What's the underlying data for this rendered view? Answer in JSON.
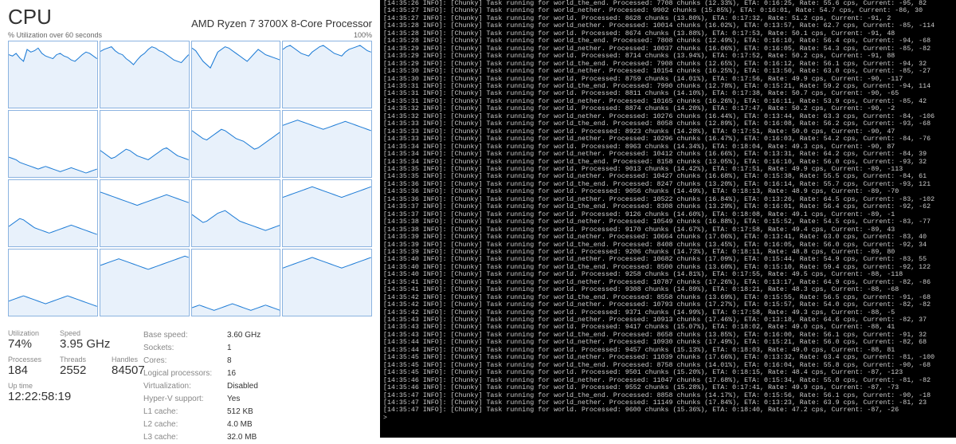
{
  "cpu": {
    "title": "CPU",
    "model": "AMD Ryzen 7 3700X 8-Core Processor",
    "axis_left": "% Utilization over 60 seconds",
    "axis_right": "100%",
    "core_colors": {
      "stroke": "#1e7cd6",
      "fill": "#e8f1fb",
      "border": "#8bb3e0"
    },
    "cores": [
      [
        80,
        78,
        82,
        75,
        70,
        88,
        84,
        86,
        90,
        82,
        78,
        76,
        74,
        80,
        82,
        78,
        76,
        72,
        70,
        75,
        80,
        84,
        82,
        78,
        74
      ],
      [
        85,
        88,
        90,
        92,
        86,
        82,
        80,
        74,
        70,
        65,
        72,
        78,
        82,
        88,
        92,
        90,
        86,
        84,
        80,
        76,
        72,
        70,
        68,
        74,
        80
      ],
      [
        90,
        86,
        78,
        70,
        65,
        60,
        72,
        84,
        88,
        92,
        90,
        86,
        82,
        78,
        74,
        70,
        76,
        82,
        88,
        84,
        80,
        78,
        76,
        74,
        72
      ],
      [
        88,
        92,
        94,
        90,
        86,
        82,
        80,
        78,
        84,
        88,
        92,
        94,
        90,
        86,
        82,
        80,
        78,
        84,
        88,
        90,
        92,
        94,
        90,
        86,
        84
      ],
      [
        30,
        28,
        26,
        22,
        20,
        18,
        16,
        14,
        12,
        14,
        16,
        14,
        12,
        10,
        8,
        10,
        12,
        14,
        12,
        10,
        8,
        6,
        8,
        10,
        12
      ],
      [
        40,
        36,
        32,
        28,
        30,
        34,
        38,
        42,
        40,
        36,
        32,
        30,
        28,
        26,
        30,
        34,
        38,
        42,
        44,
        40,
        36,
        32,
        30,
        28,
        26
      ],
      [
        70,
        66,
        62,
        58,
        56,
        60,
        64,
        68,
        72,
        70,
        66,
        62,
        58,
        56,
        54,
        50,
        46,
        42,
        44,
        48,
        52,
        56,
        60,
        64,
        68
      ],
      [
        78,
        80,
        82,
        84,
        86,
        84,
        82,
        80,
        78,
        76,
        74,
        72,
        74,
        76,
        78,
        80,
        82,
        84,
        82,
        80,
        78,
        76,
        74,
        72,
        70
      ],
      [
        30,
        34,
        38,
        42,
        40,
        36,
        32,
        28,
        26,
        24,
        22,
        20,
        22,
        24,
        26,
        28,
        30,
        32,
        30,
        28,
        26,
        24,
        22,
        20,
        18
      ],
      [
        82,
        80,
        78,
        76,
        74,
        72,
        70,
        68,
        66,
        64,
        62,
        64,
        66,
        68,
        70,
        72,
        74,
        76,
        78,
        76,
        74,
        72,
        70,
        68,
        66
      ],
      [
        48,
        44,
        40,
        36,
        38,
        42,
        46,
        50,
        52,
        54,
        50,
        46,
        42,
        38,
        36,
        34,
        32,
        30,
        28,
        26,
        24,
        26,
        28,
        30,
        32
      ],
      [
        74,
        76,
        78,
        80,
        82,
        84,
        86,
        88,
        90,
        88,
        86,
        84,
        82,
        80,
        78,
        76,
        74,
        76,
        78,
        80,
        82,
        84,
        86,
        88,
        90
      ],
      [
        22,
        24,
        26,
        28,
        30,
        28,
        26,
        24,
        22,
        20,
        18,
        20,
        22,
        24,
        26,
        28,
        30,
        28,
        26,
        24,
        22,
        20,
        18,
        16,
        14
      ],
      [
        76,
        78,
        80,
        82,
        84,
        86,
        84,
        82,
        80,
        78,
        76,
        74,
        72,
        70,
        72,
        74,
        76,
        78,
        80,
        82,
        84,
        86,
        88,
        90,
        88
      ],
      [
        12,
        14,
        16,
        14,
        12,
        10,
        8,
        10,
        12,
        14,
        16,
        18,
        16,
        14,
        12,
        10,
        8,
        10,
        12,
        14,
        16,
        14,
        12,
        10,
        8
      ],
      [
        72,
        74,
        76,
        78,
        80,
        82,
        84,
        86,
        88,
        86,
        84,
        82,
        80,
        78,
        76,
        74,
        72,
        74,
        76,
        78,
        80,
        82,
        84,
        86,
        88
      ]
    ],
    "stats": {
      "utilization_label": "Utilization",
      "utilization": "74%",
      "speed_label": "Speed",
      "speed": "3.95 GHz",
      "processes_label": "Processes",
      "processes": "184",
      "threads_label": "Threads",
      "threads": "2552",
      "handles_label": "Handles",
      "handles": "84507",
      "uptime_label": "Up time",
      "uptime": "12:22:58:19"
    },
    "kv": [
      {
        "k": "Base speed:",
        "v": "3.60 GHz"
      },
      {
        "k": "Sockets:",
        "v": "1"
      },
      {
        "k": "Cores:",
        "v": "8"
      },
      {
        "k": "Logical processors:",
        "v": "16"
      },
      {
        "k": "Virtualization:",
        "v": "Disabled"
      },
      {
        "k": "Hyper-V support:",
        "v": "Yes"
      },
      {
        "k": "L1 cache:",
        "v": "512 KB"
      },
      {
        "k": "L2 cache:",
        "v": "4.0 MB"
      },
      {
        "k": "L3 cache:",
        "v": "32.0 MB"
      }
    ]
  },
  "terminal": {
    "color": "#cccccc",
    "background": "#000000",
    "lines": [
      "[14:35:26 INFO]: [Chunky] Task running for world_the_end. Processed: 7708 chunks (12.33%), ETA: 0:16:25, Rate: 55.6 cps, Current: -95, 82",
      "[14:35:27 INFO]: [Chunky] Task running for world_nether. Processed: 9902 chunks (15.85%), ETA: 0:16:01, Rate: 54.7 cps, Current: -86, 30",
      "[14:35:27 INFO]: [Chunky] Task running for world. Processed: 8628 chunks (13.80%), ETA: 0:17:32, Rate: 51.2 cps, Current: -91, 2",
      "[14:35:28 INFO]: [Chunky] Task running for world_nether. Processed: 10014 chunks (16.02%), ETA: 0:13:57, Rate: 62.7 cps, Current: -85, -114",
      "[14:35:28 INFO]: [Chunky] Task running for world. Processed: 8674 chunks (13.88%), ETA: 0:17:53, Rate: 50.1 cps, Current: -91, 48",
      "[14:35:28 INFO]: [Chunky] Task running for world_the_end. Processed: 7808 chunks (12.49%), ETA: 0:16:10, Rate: 56.4 cps, Current: -94, -68",
      "[14:35:29 INFO]: [Chunky] Task running for world_nether. Processed: 10037 chunks (16.06%), ETA: 0:16:05, Rate: 54.3 cps, Current: -85, -82",
      "[14:35:29 INFO]: [Chunky] Task running for world. Processed: 8714 chunks (13.94%), ETA: 0:17:52, Rate: 50.2 cps, Current: -91, 88",
      "[14:35:29 INFO]: [Chunky] Task running for world_the_end. Processed: 7908 chunks (12.65%), ETA: 0:16:12, Rate: 56.1 cps, Current: -94, 32",
      "[14:35:30 INFO]: [Chunky] Task running for world_nether. Processed: 10154 chunks (16.25%), ETA: 0:13:50, Rate: 63.0 cps, Current: -85, -27",
      "[14:35:30 INFO]: [Chunky] Task running for world. Processed: 8759 chunks (14.01%), ETA: 0:17:56, Rate: 49.9 cps, Current: -90, -117",
      "[14:35:31 INFO]: [Chunky] Task running for world_the_end. Processed: 7990 chunks (12.78%), ETA: 0:15:21, Rate: 59.2 cps, Current: -94, 114",
      "[14:35:31 INFO]: [Chunky] Task running for world. Processed: 8811 chunks (14.10%), ETA: 0:17:38, Rate: 50.7 cps, Current: -90, -65",
      "[14:35:31 INFO]: [Chunky] Task running for world_nether. Processed: 10165 chunks (16.26%), ETA: 0:16:11, Rate: 53.9 cps, Current: -85, 42",
      "[14:35:32 INFO]: [Chunky] Task running for world. Processed: 8874 chunks (14.20%), ETA: 0:17:47, Rate: 50.2 cps, Current: -90, -2",
      "[14:35:32 INFO]: [Chunky] Task running for world_nether. Processed: 10276 chunks (16.44%), ETA: 0:13:44, Rate: 63.3 cps, Current: -84, -106",
      "[14:35:33 INFO]: [Chunky] Task running for world_the_end. Processed: 8058 chunks (12.89%), ETA: 0:16:08, Rate: 56.2 cps, Current: -93, -68",
      "[14:35:33 INFO]: [Chunky] Task running for world. Processed: 8923 chunks (14.28%), ETA: 0:17:51, Rate: 50.0 cps, Current: -90, 47",
      "[14:35:33 INFO]: [Chunky] Task running for world_nether. Processed: 10296 chunks (16.47%), ETA: 0:16:03, Rate: 54.2 cps, Current: -84, -76",
      "[14:35:34 INFO]: [Chunky] Task running for world. Processed: 8963 chunks (14.34%), ETA: 0:18:04, Rate: 49.3 cps, Current: -90, 87",
      "[14:35:34 INFO]: [Chunky] Task running for world_nether. Processed: 10412 chunks (16.66%), ETA: 0:13:31, Rate: 64.2 cps, Current: -84, 39",
      "[14:35:34 INFO]: [Chunky] Task running for world_the_end. Processed: 8158 chunks (13.05%), ETA: 0:16:10, Rate: 56.0 cps, Current: -93, 32",
      "[14:35:35 INFO]: [Chunky] Task running for world. Processed: 9013 chunks (14.42%), ETA: 0:17:51, Rate: 49.9 cps, Current: -89, -113",
      "[14:35:35 INFO]: [Chunky] Task running for world_nether. Processed: 10427 chunks (16.68%), ETA: 0:15:38, Rate: 55.5 cps, Current: -84, 61",
      "[14:35:36 INFO]: [Chunky] Task running for world_the_end. Processed: 8247 chunks (13.20%), ETA: 0:16:14, Rate: 55.7 cps, Current: -93, 121",
      "[14:35:36 INFO]: [Chunky] Task running for world. Processed: 9056 chunks (14.49%), ETA: 0:18:13, Rate: 48.9 cps, Current: -89, -70",
      "[14:35:36 INFO]: [Chunky] Task running for world_nether. Processed: 10522 chunks (16.84%), ETA: 0:13:26, Rate: 64.5 cps, Current: -83, -102",
      "[14:35:37 INFO]: [Chunky] Task running for world_the_end. Processed: 8308 chunks (13.29%), ETA: 0:16:01, Rate: 56.4 cps, Current: -92, -62",
      "[14:35:37 INFO]: [Chunky] Task running for world. Processed: 9126 chunks (14.60%), ETA: 0:18:08, Rate: 49.1 cps, Current: -89, -1",
      "[14:35:38 INFO]: [Chunky] Task running for world_nether. Processed: 10549 chunks (16.88%), ETA: 0:15:52, Rate: 54.5 cps, Current: -83, -77",
      "[14:35:38 INFO]: [Chunky] Task running for world. Processed: 9170 chunks (14.67%), ETA: 0:17:58, Rate: 49.4 cps, Current: -89, 43",
      "[14:35:39 INFO]: [Chunky] Task running for world_nether. Processed: 10664 chunks (17.06%), ETA: 0:13:41, Rate: 63.0 cps, Current: -83, 40",
      "[14:35:39 INFO]: [Chunky] Task running for world_the_end. Processed: 8408 chunks (13.45%), ETA: 0:16:05, Rate: 56.0 cps, Current: -92, 34",
      "[14:35:39 INFO]: [Chunky] Task running for world. Processed: 9206 chunks (14.73%), ETA: 0:18:11, Rate: 48.8 cps, Current: -89, 80",
      "[14:35:40 INFO]: [Chunky] Task running for world_nether. Processed: 10682 chunks (17.09%), ETA: 0:15:44, Rate: 54.9 cps, Current: -83, 55",
      "[14:35:40 INFO]: [Chunky] Task running for world_the_end. Processed: 8500 chunks (13.60%), ETA: 0:15:10, Rate: 59.4 cps, Current: -92, 122",
      "[14:35:40 INFO]: [Chunky] Task running for world. Processed: 9258 chunks (14.81%), ETA: 0:17:55, Rate: 49.5 cps, Current: -88, -118",
      "[14:35:41 INFO]: [Chunky] Task running for world_nether. Processed: 10787 chunks (17.26%), ETA: 0:13:17, Rate: 64.9 cps, Current: -82, -86",
      "[14:35:41 INFO]: [Chunky] Task running for world. Processed: 9308 chunks (14.89%), ETA: 0:18:21, Rate: 48.3 cps, Current: -88, -68",
      "[14:35:42 INFO]: [Chunky] Task running for world_the_end. Processed: 8558 chunks (13.69%), ETA: 0:15:55, Rate: 56.5 cps, Current: -91, -68",
      "[14:35:42 INFO]: [Chunky] Task running for world_nether. Processed: 10793 chunks (17.27%), ETA: 0:15:57, Rate: 54.0 cps, Current: -82, -82",
      "[14:35:42 INFO]: [Chunky] Task running for world. Processed: 9371 chunks (14.99%), ETA: 0:17:58, Rate: 49.3 cps, Current: -88, -5",
      "[14:35:43 INFO]: [Chunky] Task running for world_nether. Processed: 10913 chunks (17.46%), ETA: 0:13:18, Rate: 64.6 cps, Current: -82, 37",
      "[14:35:43 INFO]: [Chunky] Task running for world. Processed: 9417 chunks (15.07%), ETA: 0:18:02, Rate: 49.0 cps, Current: -88, 41",
      "[14:35:43 INFO]: [Chunky] Task running for world_the_end. Processed: 8658 chunks (13.85%), ETA: 0:16:00, Rate: 56.1 cps, Current: -91, 32",
      "[14:35:44 INFO]: [Chunky] Task running for world_nether. Processed: 10930 chunks (17.49%), ETA: 0:15:21, Rate: 56.0 cps, Current: -82, 68",
      "[14:35:44 INFO]: [Chunky] Task running for world. Processed: 9457 chunks (15.13%), ETA: 0:18:03, Rate: 49.0 cps, Current: -88, 81",
      "[14:35:45 INFO]: [Chunky] Task running for world_nether. Processed: 11039 chunks (17.66%), ETA: 0:13:32, Rate: 63.4 cps, Current: -81, -100",
      "[14:35:45 INFO]: [Chunky] Task running for world_the_end. Processed: 8758 chunks (14.01%), ETA: 0:16:04, Rate: 55.8 cps, Current: -90, -68",
      "[14:35:45 INFO]: [Chunky] Task running for world. Processed: 9501 chunks (15.20%), ETA: 0:18:15, Rate: 48.4 cps, Current: -87, -123",
      "[14:35:46 INFO]: [Chunky] Task running for world_nether. Processed: 11047 chunks (17.68%), ETA: 0:15:34, Rate: 55.0 cps, Current: -81, -82",
      "[14:35:46 INFO]: [Chunky] Task running for world. Processed: 9552 chunks (15.28%), ETA: 0:17:41, Rate: 49.9 cps, Current: -87, -73",
      "[14:35:47 INFO]: [Chunky] Task running for world_the_end. Processed: 8858 chunks (14.17%), ETA: 0:15:56, Rate: 56.1 cps, Current: -90, -18",
      "[14:35:47 INFO]: [Chunky] Task running for world_nether. Processed: 11149 chunks (17.84%), ETA: 0:13:23, Rate: 63.9 cps, Current: -81, 23",
      "[14:35:47 INFO]: [Chunky] Task running for world. Processed: 9600 chunks (15.36%), ETA: 0:18:40, Rate: 47.2 cps, Current: -87, -26",
      ">"
    ]
  }
}
